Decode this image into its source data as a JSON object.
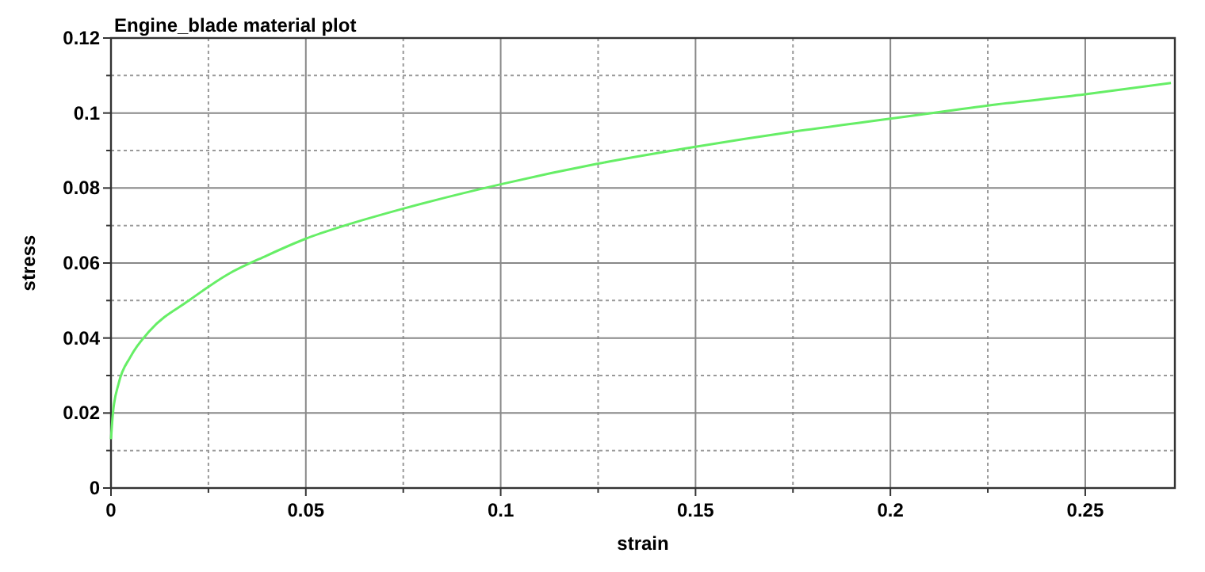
{
  "chart_data": {
    "type": "line",
    "title": "Engine_blade material plot",
    "xlabel": "strain",
    "ylabel": "stress",
    "x": [
      0,
      0.0005,
      0.002,
      0.005,
      0.01,
      0.02,
      0.03,
      0.04,
      0.05,
      0.06,
      0.075,
      0.1,
      0.125,
      0.15,
      0.175,
      0.2,
      0.225,
      0.25,
      0.272
    ],
    "series": [
      {
        "color": "#66ee66",
        "values": [
          0.013,
          0.02,
          0.028,
          0.035,
          0.042,
          0.05,
          0.057,
          0.062,
          0.0665,
          0.07,
          0.0745,
          0.081,
          0.0865,
          0.091,
          0.095,
          0.0985,
          0.102,
          0.105,
          0.108
        ]
      }
    ],
    "xlim": [
      0,
      0.273
    ],
    "ylim": [
      0,
      0.12
    ],
    "xticks": [
      0,
      {
        "value": 0.025,
        "label": null
      },
      0.05,
      {
        "value": 0.075,
        "label": null
      },
      0.1,
      {
        "value": 0.125,
        "label": null
      },
      0.15,
      {
        "value": 0.175,
        "label": null
      },
      0.2,
      {
        "value": 0.225,
        "label": null
      },
      0.25
    ],
    "yticks": [
      0,
      {
        "value": 0.01,
        "label": null
      },
      0.02,
      {
        "value": 0.03,
        "label": null
      },
      0.04,
      {
        "value": 0.05,
        "label": null
      },
      0.06,
      {
        "value": 0.07,
        "label": null
      },
      0.08,
      {
        "value": 0.09,
        "label": null
      },
      0.1,
      {
        "value": 0.11,
        "label": null
      },
      0.12
    ],
    "grid": true,
    "marker": "none",
    "line_style": "solid"
  }
}
